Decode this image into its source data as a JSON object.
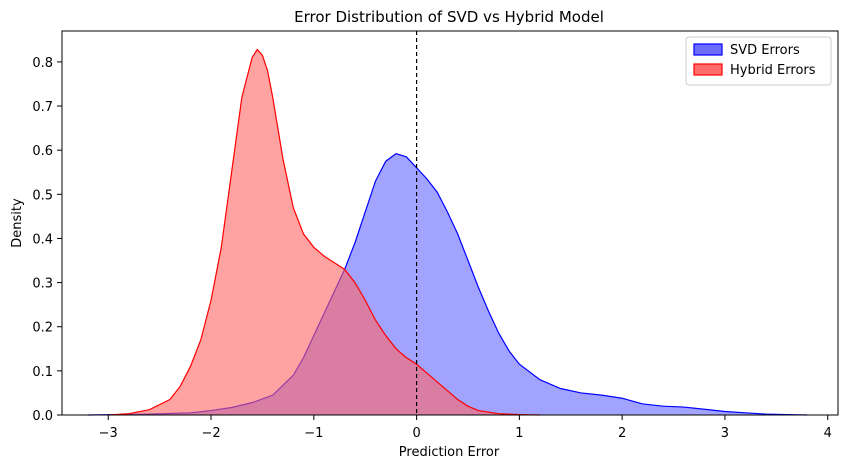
{
  "chart_data": {
    "type": "area",
    "title": "Error Distribution of SVD vs Hybrid Model",
    "xlabel": "Prediction Error",
    "ylabel": "Density",
    "xlim": [
      -3.45,
      4.1
    ],
    "ylim": [
      0,
      0.87
    ],
    "xticks": [
      -3,
      -2,
      -1,
      0,
      1,
      2,
      3,
      4
    ],
    "yticks": [
      0.0,
      0.1,
      0.2,
      0.3,
      0.4,
      0.5,
      0.6,
      0.7,
      0.8
    ],
    "ytick_labels": [
      "0.0",
      "0.1",
      "0.2",
      "0.3",
      "0.4",
      "0.5",
      "0.6",
      "0.7",
      "0.8"
    ],
    "grid": false,
    "legend_position": "top-right",
    "reference_line": {
      "x": 0,
      "style": "dashed",
      "color": "#000000"
    },
    "series": [
      {
        "name": "SVD Errors",
        "color": "#0000ff",
        "fill": "#6464ff",
        "x": [
          -3.2,
          -2.6,
          -2.2,
          -2.0,
          -1.8,
          -1.6,
          -1.4,
          -1.2,
          -1.1,
          -1.0,
          -0.9,
          -0.8,
          -0.7,
          -0.6,
          -0.5,
          -0.4,
          -0.3,
          -0.2,
          -0.1,
          0.0,
          0.1,
          0.2,
          0.3,
          0.4,
          0.5,
          0.6,
          0.7,
          0.8,
          0.9,
          1.0,
          1.2,
          1.4,
          1.6,
          1.8,
          2.0,
          2.2,
          2.4,
          2.6,
          2.8,
          3.0,
          3.2,
          3.4,
          3.6,
          3.8
        ],
        "y": [
          0.0,
          0.002,
          0.005,
          0.01,
          0.017,
          0.028,
          0.045,
          0.09,
          0.13,
          0.18,
          0.23,
          0.28,
          0.33,
          0.39,
          0.46,
          0.53,
          0.575,
          0.592,
          0.585,
          0.56,
          0.535,
          0.505,
          0.46,
          0.41,
          0.35,
          0.29,
          0.235,
          0.185,
          0.145,
          0.115,
          0.08,
          0.06,
          0.05,
          0.045,
          0.038,
          0.025,
          0.02,
          0.018,
          0.013,
          0.008,
          0.005,
          0.002,
          0.001,
          0.0
        ]
      },
      {
        "name": "Hybrid Errors",
        "color": "#ff0000",
        "fill": "#ff6464",
        "x": [
          -3.0,
          -2.8,
          -2.6,
          -2.4,
          -2.3,
          -2.2,
          -2.1,
          -2.0,
          -1.9,
          -1.8,
          -1.7,
          -1.6,
          -1.55,
          -1.5,
          -1.45,
          -1.4,
          -1.3,
          -1.2,
          -1.1,
          -1.0,
          -0.9,
          -0.8,
          -0.7,
          -0.6,
          -0.5,
          -0.4,
          -0.3,
          -0.2,
          -0.1,
          0.0,
          0.1,
          0.2,
          0.3,
          0.4,
          0.5,
          0.6,
          0.8,
          1.0,
          1.2
        ],
        "y": [
          0.0,
          0.003,
          0.012,
          0.035,
          0.065,
          0.11,
          0.17,
          0.26,
          0.38,
          0.55,
          0.72,
          0.81,
          0.828,
          0.815,
          0.78,
          0.72,
          0.58,
          0.47,
          0.41,
          0.38,
          0.36,
          0.345,
          0.33,
          0.3,
          0.26,
          0.215,
          0.18,
          0.15,
          0.13,
          0.115,
          0.095,
          0.075,
          0.055,
          0.035,
          0.02,
          0.01,
          0.003,
          0.001,
          0.0
        ]
      }
    ]
  }
}
